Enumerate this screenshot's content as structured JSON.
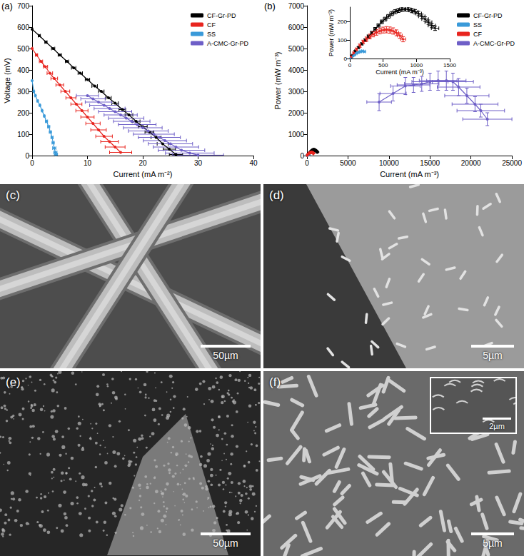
{
  "chart_data": [
    {
      "type": "line",
      "label": "(a)",
      "x_label": "Current (mA m⁻²)",
      "y_label": "Voltage (mV)",
      "xlim": [
        0,
        40
      ],
      "xticks": [
        0,
        10,
        20,
        30,
        40
      ],
      "ylim": [
        0,
        700
      ],
      "yticks": [
        0,
        100,
        200,
        300,
        400,
        500,
        600,
        700
      ],
      "grid": false,
      "legend": "upper right",
      "marker": "circle",
      "series": [
        {
          "name": "CF-Gr-PD",
          "color": "#000000",
          "x": [
            0,
            1.3,
            2.5,
            3.8,
            5,
            6.3,
            7.5,
            8.7,
            10,
            11.3,
            12.5,
            13.8,
            15,
            16.3,
            17.5,
            18.8,
            20,
            21.2,
            22.4,
            23.6,
            24.8,
            26
          ],
          "values": [
            590,
            560,
            530,
            500,
            470,
            440,
            410,
            385,
            355,
            325,
            300,
            270,
            245,
            215,
            190,
            160,
            135,
            110,
            85,
            55,
            30,
            5
          ],
          "xerr": [
            0.1,
            0.2,
            0.2,
            0.3,
            0.3,
            0.3,
            0.4,
            0.4,
            0.4,
            0.5,
            0.5,
            0.5,
            0.6,
            0.6,
            0.7,
            0.7,
            0.8,
            0.8,
            0.9,
            1,
            1.1,
            1.2
          ]
        },
        {
          "name": "CF",
          "color": "#e8251f",
          "x": [
            0,
            0.8,
            1.6,
            2.4,
            3.2,
            4,
            5,
            6,
            7,
            8,
            9,
            10,
            11,
            12,
            13,
            14,
            15,
            16
          ],
          "values": [
            500,
            470,
            440,
            415,
            385,
            360,
            330,
            300,
            270,
            240,
            210,
            180,
            150,
            120,
            90,
            65,
            40,
            15
          ],
          "xerr": [
            0.1,
            0.2,
            0.3,
            0.4,
            0.5,
            0.6,
            0.7,
            0.8,
            0.9,
            1,
            1.1,
            1.2,
            1.3,
            1.4,
            1.5,
            1.6,
            1.8,
            2
          ]
        },
        {
          "name": "SS",
          "color": "#3a9ad9",
          "x": [
            0,
            0.3,
            0.6,
            1,
            1.4,
            1.8,
            2.2,
            2.6,
            3,
            3.3,
            3.6,
            3.8,
            4,
            4.2,
            4.3
          ],
          "values": [
            350,
            300,
            280,
            255,
            235,
            210,
            185,
            160,
            135,
            110,
            85,
            60,
            35,
            15,
            5
          ],
          "xerr": [
            0,
            0.1,
            0.1,
            0.1,
            0.1,
            0.1,
            0.1,
            0.2,
            0.2,
            0.2,
            0.2,
            0.2,
            0.3,
            0.3,
            0.3
          ]
        },
        {
          "name": "A-CMC-Gr-PD",
          "color": "#6e5fc7",
          "x": [
            10,
            11,
            12,
            13,
            14,
            15,
            16,
            17,
            18,
            19,
            20,
            21,
            22,
            23,
            24,
            25,
            26,
            27,
            28.5,
            30
          ],
          "values": [
            280,
            265,
            250,
            235,
            220,
            205,
            190,
            175,
            160,
            145,
            130,
            115,
            100,
            85,
            70,
            55,
            40,
            25,
            12,
            2
          ],
          "xerr": [
            2,
            2.2,
            2.4,
            2.6,
            2.8,
            3,
            3,
            3.2,
            3.3,
            3.4,
            3.5,
            3.6,
            3.7,
            3.8,
            3.9,
            4,
            4.1,
            4.2,
            4.4,
            4.6
          ]
        }
      ]
    },
    {
      "type": "line",
      "label": "(b)",
      "x_label": "Current (mA m⁻³)",
      "y_label": "Power (mW m⁻³)",
      "xlim": [
        0,
        25000
      ],
      "xticks": [
        0,
        5000,
        10000,
        15000,
        20000,
        25000
      ],
      "ylim": [
        0,
        7000
      ],
      "yticks": [
        0,
        1000,
        2000,
        3000,
        4000,
        5000,
        6000,
        7000
      ],
      "grid": false,
      "legend": "upper right",
      "marker": "circle",
      "inset": {
        "x_label": "Current (mA m⁻³)",
        "y_label": "Power (mW m⁻³)",
        "xlim": [
          0,
          1500
        ],
        "xticks": [
          0,
          500,
          1000,
          1500
        ],
        "ylim": [
          0,
          280
        ],
        "yticks": [
          0,
          100,
          200
        ]
      },
      "series": [
        {
          "name": "CF-Gr-PD",
          "color": "#000000",
          "x": [
            30,
            80,
            130,
            180,
            230,
            280,
            330,
            380,
            430,
            480,
            530,
            580,
            630,
            680,
            730,
            780,
            830,
            880,
            930,
            980,
            1030,
            1080,
            1130,
            1180,
            1230,
            1280
          ],
          "values": [
            15,
            40,
            60,
            80,
            100,
            120,
            140,
            160,
            180,
            200,
            215,
            230,
            245,
            255,
            262,
            268,
            270,
            268,
            262,
            255,
            245,
            230,
            215,
            198,
            180,
            165
          ],
          "xerr": [
            5,
            8,
            10,
            12,
            14,
            16,
            18,
            20,
            22,
            24,
            26,
            28,
            30,
            32,
            34,
            36,
            38,
            40,
            42,
            44,
            46,
            48,
            50,
            52,
            54,
            56
          ],
          "yerr": [
            3,
            4,
            5,
            6,
            7,
            8,
            8,
            9,
            9,
            10,
            10,
            10,
            11,
            11,
            11,
            12,
            12,
            12,
            12,
            12,
            12,
            12,
            12,
            12,
            12,
            12
          ]
        },
        {
          "name": "SS",
          "color": "#3a9ad9",
          "x": [
            10,
            40,
            70,
            100,
            130,
            160,
            190,
            220
          ],
          "values": [
            3,
            12,
            20,
            28,
            34,
            38,
            40,
            38
          ],
          "xerr": [
            3,
            5,
            7,
            9,
            10,
            11,
            12,
            13
          ],
          "yerr": [
            1,
            2,
            2,
            3,
            3,
            3,
            3,
            3
          ]
        },
        {
          "name": "CF",
          "color": "#e8251f",
          "x": [
            20,
            60,
            100,
            150,
            200,
            250,
            300,
            350,
            400,
            450,
            500,
            550,
            600,
            650,
            700,
            750,
            800
          ],
          "values": [
            10,
            30,
            50,
            70,
            90,
            105,
            120,
            132,
            142,
            150,
            155,
            157,
            155,
            150,
            140,
            125,
            105
          ],
          "xerr": [
            5,
            8,
            10,
            12,
            14,
            16,
            18,
            20,
            22,
            24,
            26,
            28,
            30,
            32,
            34,
            36,
            38
          ],
          "yerr": [
            3,
            5,
            7,
            9,
            10,
            12,
            13,
            14,
            15,
            16,
            16,
            17,
            17,
            17,
            16,
            15,
            14
          ]
        },
        {
          "name": "A-CMC-Gr-PD",
          "color": "#6e5fc7",
          "x": [
            8800,
            10500,
            12000,
            13000,
            14000,
            15000,
            16000,
            17000,
            17800,
            18500,
            19500,
            20500,
            21200,
            22000
          ],
          "values": [
            2500,
            2900,
            3250,
            3300,
            3350,
            3450,
            3500,
            3500,
            3450,
            3200,
            2800,
            2400,
            2100,
            1700
          ],
          "xerr": [
            1500,
            1600,
            1800,
            2000,
            2100,
            2200,
            2300,
            2400,
            2500,
            2600,
            2700,
            2800,
            2900,
            3000
          ],
          "yerr": [
            400,
            350,
            400,
            350,
            350,
            400,
            450,
            450,
            400,
            400,
            350,
            350,
            300,
            300
          ]
        }
      ]
    }
  ],
  "images": [
    {
      "label": "(c)",
      "scale_bar": "50µm"
    },
    {
      "label": "(d)",
      "scale_bar": "5µm"
    },
    {
      "label": "(e)",
      "scale_bar": "50µm"
    },
    {
      "label": "(f)",
      "scale_bar": "5µm",
      "inset_scale_bar": "2µm"
    }
  ]
}
